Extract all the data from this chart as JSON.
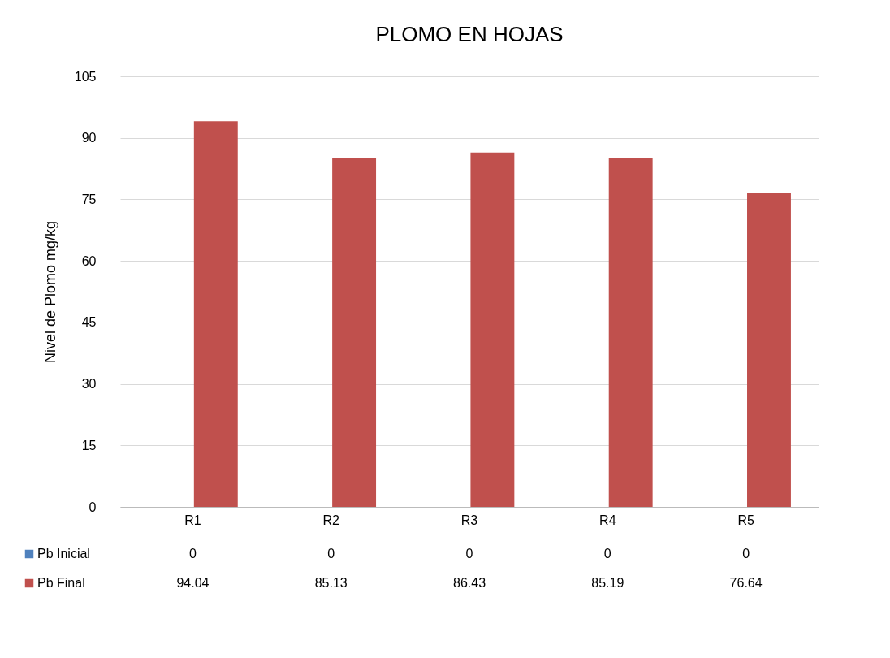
{
  "chart_data": {
    "type": "bar",
    "title": "PLOMO EN HOJAS",
    "ylabel": "Nivel de Plomo mg/kg",
    "categories": [
      "R1",
      "R2",
      "R3",
      "R4",
      "R5"
    ],
    "series": [
      {
        "name": "Pb Inicial",
        "color": "#4f81bd",
        "values": [
          0,
          0,
          0,
          0,
          0
        ]
      },
      {
        "name": "Pb Final",
        "color": "#c0504d",
        "values": [
          94.04,
          85.13,
          86.43,
          85.19,
          76.64
        ]
      }
    ],
    "ylim": [
      0,
      105
    ],
    "yticks": [
      0,
      15,
      30,
      45,
      60,
      75,
      90,
      105
    ],
    "grid": "y",
    "data_labels": true,
    "legend": "bottom"
  }
}
